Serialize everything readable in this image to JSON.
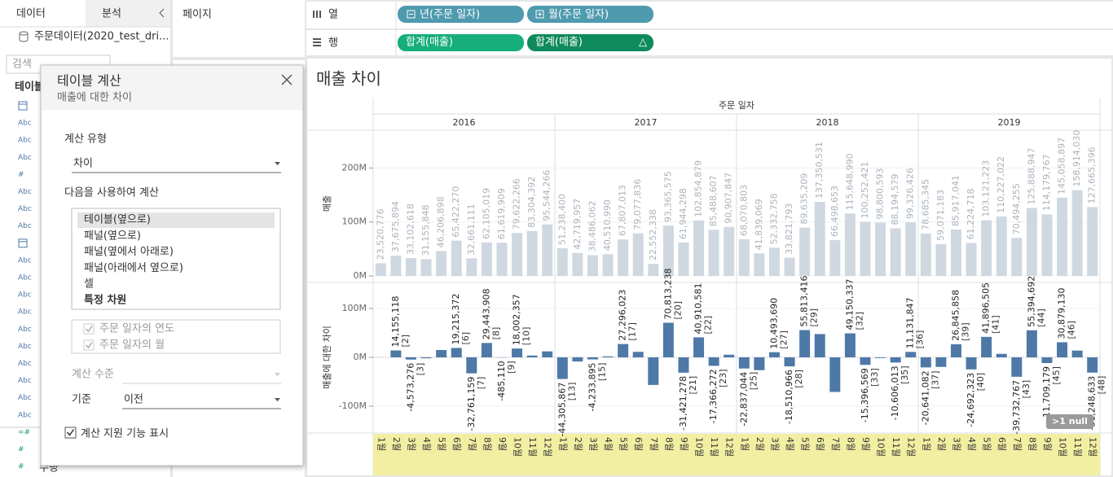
{
  "sidebar": {
    "tabs": [
      "데이터",
      "분석"
    ],
    "datasource": "주문데이터(2020_test_dri...",
    "search_placeholder": "검색",
    "section": "테이블",
    "field_icons": [
      null,
      "Abc",
      "Abc",
      "Abc",
      "#",
      "Abc",
      "Abc",
      "Abc",
      null,
      "Abc",
      "Abc",
      "Abc",
      "Abc",
      "Abc",
      "Abc",
      "Abc",
      "Abc",
      "Abc",
      "Abc",
      "=#",
      "#",
      "#"
    ],
    "last_field": "수량"
  },
  "pages_shelf": "페이지",
  "columns_shelf": {
    "label": "열",
    "pills": [
      "년(주문 일자)",
      "월(주문 일자)"
    ]
  },
  "rows_shelf": {
    "label": "행",
    "pills": [
      "합계(매출)",
      "합계(매출)"
    ],
    "table_calc_marker": "△"
  },
  "dialog": {
    "title": "테이블 계산",
    "subtitle": "매출에 대한 차이",
    "calc_type_label": "계산 유형",
    "calc_type": "차이",
    "compute_using_label": "다음을 사용하여 계산",
    "compute_using_options": [
      "테이블(옆으로)",
      "패널(옆으로)",
      "패널(옆에서 아래로)",
      "패널(아래에서 옆으로)",
      "셀",
      "특정 차원"
    ],
    "selected_index": 0,
    "dimension_checks": [
      "주문 일자의 연도",
      "주문 일자의 월"
    ],
    "level_label": "계산 수준",
    "relative_label": "기준",
    "relative_to": "이전",
    "show_assist": "계산 지원 기능 표시"
  },
  "chart_data": [
    {
      "type": "bar",
      "title": "매출 차이",
      "x_header": "주문 일자",
      "x_groups": [
        "2016",
        "2017",
        "2018",
        "2019"
      ],
      "categories": [
        "1월",
        "2월",
        "3월",
        "4월",
        "5월",
        "6월",
        "7월",
        "8월",
        "9월",
        "10월",
        "11월",
        "12월",
        "1월",
        "2월",
        "3월",
        "4월",
        "5월",
        "6월",
        "7월",
        "8월",
        "9월",
        "10월",
        "11월",
        "12월",
        "1월",
        "2월",
        "3월",
        "4월",
        "5월",
        "6월",
        "7월",
        "8월",
        "9월",
        "10월",
        "11월",
        "12월",
        "1월",
        "2월",
        "3월",
        "4월",
        "5월",
        "6월",
        "7월",
        "8월",
        "9월",
        "10월",
        "11월",
        "12월"
      ],
      "y_label": "매출",
      "color": "#cfd8e1",
      "label_color": "#aab3bc",
      "values": [
        23520776,
        37675894,
        33102618,
        31155848,
        46206898,
        65422270,
        32661111,
        62105019,
        61619909,
        79622266,
        83304392,
        95544266,
        51238400,
        42719957,
        38486062,
        40510990,
        67807013,
        79077836,
        22552338,
        93365575,
        61944298,
        102854879,
        85488607,
        90907847,
        68070803,
        41839069,
        52332758,
        33821793,
        89635209,
        137350531,
        66498653,
        115648990,
        100252421,
        98800593,
        88194579,
        99326426,
        78685345,
        59071183,
        85917041,
        61224718,
        103121223,
        110227022,
        70494255,
        125888947,
        114179767,
        145058897,
        158914030,
        127665396
      ],
      "value_labels": [
        "23,520,776",
        "37,675,894",
        "33,102,618",
        "31,155,848",
        "46,206,898",
        "65,422,270",
        "32,661,111",
        "62,105,019",
        "61,619,909",
        "79,622,266",
        "83,304,392",
        "95,544,266",
        "51,238,400",
        "42,719,957",
        "38,486,062",
        "40,510,990",
        "67,807,013",
        "79,077,836",
        "22,552,338",
        "93,365,575",
        "61,944,298",
        "102,854,879",
        "85,488,607",
        "90,907,847",
        "68,070,803",
        "41,839,069",
        "52,332,758",
        "33,821,793",
        "89,635,209",
        "137,350,531",
        "66,498,653",
        "115,648,990",
        "100,252,421",
        "98,800,593",
        "88,194,579",
        "99,326,426",
        "78,685,345",
        "59,071,183",
        "85,917,041",
        "61,224,718",
        "103,121,223",
        "110,227,022",
        "70,494,255",
        "125,888,947",
        "114,179,767",
        "145,058,897",
        "158,914,030",
        "127,665,396"
      ],
      "ylim": [
        0,
        270000000
      ],
      "yticks": [
        {
          "value": 0,
          "label": "0M"
        },
        {
          "value": 100000000,
          "label": "100M"
        },
        {
          "value": 200000000,
          "label": "200M"
        }
      ],
      "grid": true
    },
    {
      "type": "bar",
      "y_label": "매출에 대한 차이",
      "color": "#4e79a7",
      "values": [
        null,
        14155118,
        -4573276,
        -1946770,
        15051050,
        19215372,
        -32761159,
        29443908,
        -485110,
        18002357,
        3682126,
        12239874,
        -44305867,
        -8518443,
        -4233895,
        2024928,
        27296023,
        11270823,
        -56525498,
        70813238,
        -31421278,
        40910581,
        -17366272,
        5419240,
        -22837044,
        -26231734,
        10493690,
        -18510966,
        55813416,
        47715322,
        -70851878,
        49150337,
        -15396569,
        -1451828,
        -10606013,
        11131847,
        -20641082,
        -19614162,
        26845858,
        -24692323,
        41896505,
        7105799,
        -39732767,
        55394692,
        -11709179,
        30879130,
        13855133,
        -31248633
      ],
      "value_labels": [
        null,
        "14,155,118",
        "-4,573,276",
        null,
        null,
        "19,215,372",
        "-32,761,159",
        "29,443,908",
        "-485,110",
        "18,002,357",
        null,
        null,
        "-44,305,867",
        null,
        "-4,233,895",
        null,
        "27,296,023",
        null,
        null,
        "70,813,238",
        "-31,421,278",
        "40,910,581",
        "-17,366,272",
        null,
        "-22,837,044",
        null,
        "10,493,690",
        "-18,510,966",
        "55,813,416",
        null,
        null,
        "49,150,337",
        "-15,396,569",
        null,
        "-10,606,013",
        "11,131,847",
        "-20,641,082",
        null,
        "26,845,858",
        "-24,692,323",
        "41,896,505",
        null,
        "-39,732,767",
        "55,394,692",
        "-11,709,179",
        "30,879,130",
        null,
        "-31,248,633"
      ],
      "index_labels": [
        null,
        "[2]",
        "[3]",
        null,
        null,
        "[6]",
        "[7]",
        "[8]",
        "[9]",
        "[10]",
        null,
        null,
        "[13]",
        null,
        "[15]",
        null,
        "[17]",
        null,
        null,
        "[20]",
        "[21]",
        "[22]",
        "[23]",
        null,
        "[25]",
        null,
        "[27]",
        "[28]",
        "[29]",
        null,
        null,
        "[32]",
        "[33]",
        null,
        "[35]",
        "[36]",
        "[37]",
        null,
        "[39]",
        "[40]",
        "[41]",
        null,
        "[43]",
        "[44]",
        "[45]",
        "[46]",
        null,
        "[48]"
      ],
      "ylim": [
        -150000000,
        150000000
      ],
      "yticks": [
        {
          "value": -100000000,
          "label": "-100M"
        },
        {
          "value": 0,
          "label": "0M"
        },
        {
          "value": 100000000,
          "label": "100M"
        }
      ],
      "grid": true,
      "null_indicator": ">1 null"
    }
  ]
}
